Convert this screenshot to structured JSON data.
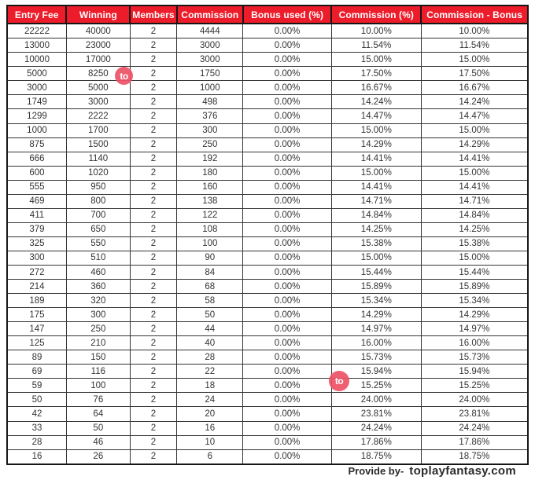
{
  "colors": {
    "header_bg": "#ed1c2b",
    "header_text": "#ffffff",
    "border_dark": "#161616",
    "cell_text": "#343434",
    "watermark_bg": "#ee5368",
    "watermark_text": "#ffffff"
  },
  "chart_data": {
    "type": "table",
    "title": "Fantasy contest commission structure",
    "columns": [
      "Entry Fee",
      "Winning",
      "Members",
      "Commission",
      "Bonus used (%)",
      "Commission (%)",
      "Commission - Bonus"
    ],
    "rows": [
      [
        "22222",
        "40000",
        "2",
        "4444",
        "0.00%",
        "10.00%",
        "10.00%"
      ],
      [
        "13000",
        "23000",
        "2",
        "3000",
        "0.00%",
        "11.54%",
        "11.54%"
      ],
      [
        "10000",
        "17000",
        "2",
        "3000",
        "0.00%",
        "15.00%",
        "15.00%"
      ],
      [
        "5000",
        "8250",
        "2",
        "1750",
        "0.00%",
        "17.50%",
        "17.50%"
      ],
      [
        "3000",
        "5000",
        "2",
        "1000",
        "0.00%",
        "16.67%",
        "16.67%"
      ],
      [
        "1749",
        "3000",
        "2",
        "498",
        "0.00%",
        "14.24%",
        "14.24%"
      ],
      [
        "1299",
        "2222",
        "2",
        "376",
        "0.00%",
        "14.47%",
        "14.47%"
      ],
      [
        "1000",
        "1700",
        "2",
        "300",
        "0.00%",
        "15.00%",
        "15.00%"
      ],
      [
        "875",
        "1500",
        "2",
        "250",
        "0.00%",
        "14.29%",
        "14.29%"
      ],
      [
        "666",
        "1140",
        "2",
        "192",
        "0.00%",
        "14.41%",
        "14.41%"
      ],
      [
        "600",
        "1020",
        "2",
        "180",
        "0.00%",
        "15.00%",
        "15.00%"
      ],
      [
        "555",
        "950",
        "2",
        "160",
        "0.00%",
        "14.41%",
        "14.41%"
      ],
      [
        "469",
        "800",
        "2",
        "138",
        "0.00%",
        "14.71%",
        "14.71%"
      ],
      [
        "411",
        "700",
        "2",
        "122",
        "0.00%",
        "14.84%",
        "14.84%"
      ],
      [
        "379",
        "650",
        "2",
        "108",
        "0.00%",
        "14.25%",
        "14.25%"
      ],
      [
        "325",
        "550",
        "2",
        "100",
        "0.00%",
        "15.38%",
        "15.38%"
      ],
      [
        "300",
        "510",
        "2",
        "90",
        "0.00%",
        "15.00%",
        "15.00%"
      ],
      [
        "272",
        "460",
        "2",
        "84",
        "0.00%",
        "15.44%",
        "15.44%"
      ],
      [
        "214",
        "360",
        "2",
        "68",
        "0.00%",
        "15.89%",
        "15.89%"
      ],
      [
        "189",
        "320",
        "2",
        "58",
        "0.00%",
        "15.34%",
        "15.34%"
      ],
      [
        "175",
        "300",
        "2",
        "50",
        "0.00%",
        "14.29%",
        "14.29%"
      ],
      [
        "147",
        "250",
        "2",
        "44",
        "0.00%",
        "14.97%",
        "14.97%"
      ],
      [
        "125",
        "210",
        "2",
        "40",
        "0.00%",
        "16.00%",
        "16.00%"
      ],
      [
        "89",
        "150",
        "2",
        "28",
        "0.00%",
        "15.73%",
        "15.73%"
      ],
      [
        "69",
        "116",
        "2",
        "22",
        "0.00%",
        "15.94%",
        "15.94%"
      ],
      [
        "59",
        "100",
        "2",
        "18",
        "0.00%",
        "15.25%",
        "15.25%"
      ],
      [
        "50",
        "76",
        "2",
        "24",
        "0.00%",
        "24.00%",
        "24.00%"
      ],
      [
        "42",
        "64",
        "2",
        "20",
        "0.00%",
        "23.81%",
        "23.81%"
      ],
      [
        "33",
        "50",
        "2",
        "16",
        "0.00%",
        "24.24%",
        "24.24%"
      ],
      [
        "28",
        "46",
        "2",
        "10",
        "0.00%",
        "17.86%",
        "17.86%"
      ],
      [
        "16",
        "26",
        "2",
        "6",
        "0.00%",
        "18.75%",
        "18.75%"
      ]
    ]
  },
  "watermark": {
    "label": "to"
  },
  "footer": {
    "provide_label": "Provide by-",
    "brand": "toplayfantasy.com"
  }
}
